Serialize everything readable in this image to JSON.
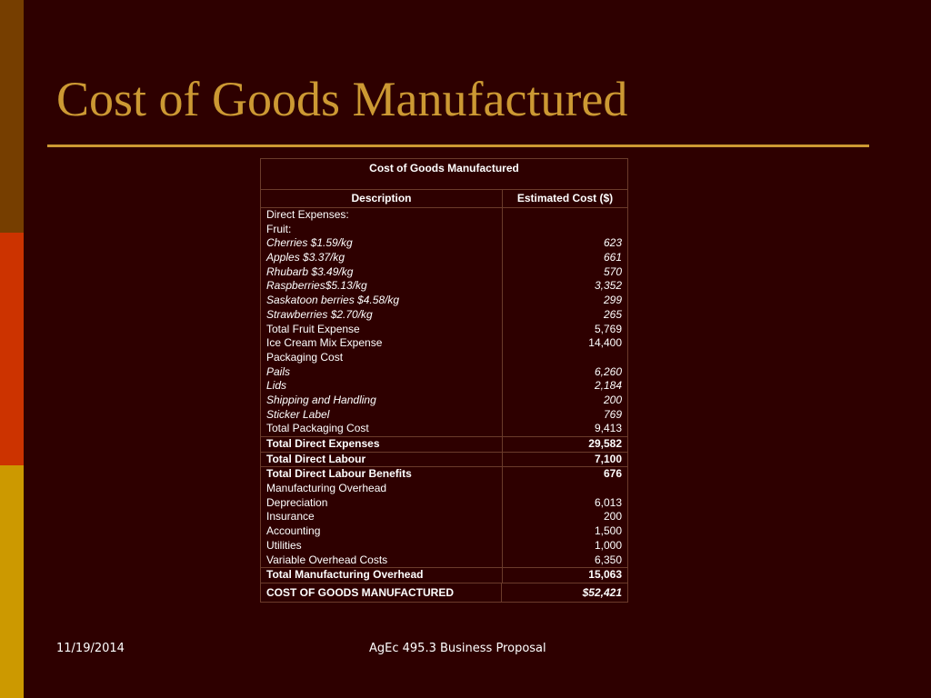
{
  "slide": {
    "title": "Cost of Goods Manufactured",
    "footer_date": "11/19/2014",
    "footer_text": "AgEc 495.3 Business Proposal"
  },
  "table": {
    "title": "Cost of Goods Manufactured",
    "col_description": "Description",
    "col_cost": "Estimated Cost ($)",
    "rows": [
      {
        "desc": "Direct Expenses:",
        "cost": "",
        "style": "normal"
      },
      {
        "desc": "Fruit:",
        "cost": "",
        "style": "normal"
      },
      {
        "desc": "Cherries $1.59/kg",
        "cost": "623",
        "style": "italic"
      },
      {
        "desc": "Apples $3.37/kg",
        "cost": "661",
        "style": "italic"
      },
      {
        "desc": "Rhubarb $3.49/kg",
        "cost": "570",
        "style": "italic"
      },
      {
        "desc": "Raspberries$5.13/kg",
        "cost": "3,352",
        "style": "italic"
      },
      {
        "desc": "Saskatoon berries $4.58/kg",
        "cost": "299",
        "style": "italic"
      },
      {
        "desc": "Strawberries $2.70/kg",
        "cost": "265",
        "style": "italic"
      },
      {
        "desc": "Total Fruit Expense",
        "cost": "5,769",
        "style": "normal"
      },
      {
        "desc": "Ice Cream Mix Expense",
        "cost": "14,400",
        "style": "normal"
      },
      {
        "desc": "Packaging Cost",
        "cost": "",
        "style": "normal"
      },
      {
        "desc": "Pails",
        "cost": "6,260",
        "style": "italic"
      },
      {
        "desc": "Lids",
        "cost": "2,184",
        "style": "italic"
      },
      {
        "desc": "Shipping and Handling",
        "cost": "200",
        "style": "italic"
      },
      {
        "desc": "Sticker Label",
        "cost": "769",
        "style": "italic"
      },
      {
        "desc": "Total Packaging Cost",
        "cost": "9,413",
        "style": "normal"
      },
      {
        "desc": "Total Direct Expenses",
        "cost": "29,582",
        "style": "bold"
      },
      {
        "desc": "Total Direct Labour",
        "cost": "7,100",
        "style": "bold"
      },
      {
        "desc": "Total Direct Labour Benefits",
        "cost": "676",
        "style": "bold"
      },
      {
        "desc": "Manufacturing Overhead",
        "cost": "",
        "style": "normal"
      },
      {
        "desc": "Depreciation",
        "cost": "6,013",
        "style": "normal"
      },
      {
        "desc": "Insurance",
        "cost": "200",
        "style": "normal"
      },
      {
        "desc": "Accounting",
        "cost": "1,500",
        "style": "normal"
      },
      {
        "desc": "Utilities",
        "cost": "1,000",
        "style": "normal"
      },
      {
        "desc": "Variable Overhead Costs",
        "cost": "6,350",
        "style": "normal"
      },
      {
        "desc": "Total Manufacturing Overhead",
        "cost": "15,063",
        "style": "bold"
      }
    ],
    "final_desc": "COST OF GOODS MANUFACTURED",
    "final_cost": "$52,421"
  }
}
